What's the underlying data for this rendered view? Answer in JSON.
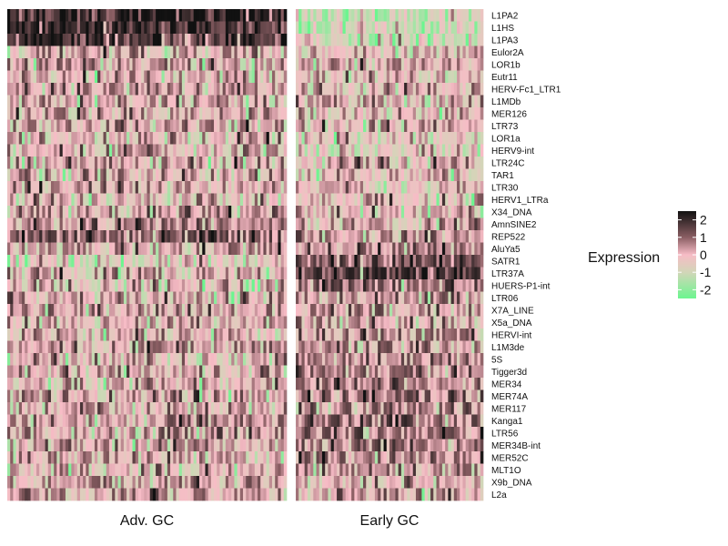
{
  "chart_data": {
    "type": "heatmap",
    "groups": [
      {
        "label": "Adv. GC",
        "columns": 96,
        "seed": 17
      },
      {
        "label": "Early GC",
        "columns": 64,
        "seed": 53
      }
    ],
    "rows": [
      "L1PA2",
      "L1HS",
      "L1PA3",
      "Eulor2A",
      "LOR1b",
      "Eutr11",
      "HERV-Fc1_LTR1",
      "L1MDb",
      "MER126",
      "LTR73",
      "LOR1a",
      "HERV9-int",
      "LTR24C",
      "TAR1",
      "LTR30",
      "HERV1_LTRa",
      "X34_DNA",
      "AmnSINE2",
      "REP522",
      "AluYa5",
      "SATR1",
      "LTR37A",
      "HUERS-P1-int",
      "LTR06",
      "X7A_LINE",
      "X5a_DNA",
      "HERVI-int",
      "L1M3de",
      "5S",
      "Tigger3d",
      "MER34",
      "MER74A",
      "MER117",
      "Kanga1",
      "LTR56",
      "MER34B-int",
      "MER52C",
      "MLT1O",
      "X9b_DNA",
      "L2a"
    ],
    "row_bias": {
      "Adv. GC": [
        2.0,
        1.9,
        1.6,
        0,
        0.3,
        0,
        0.4,
        0.1,
        0.2,
        0.2,
        0.1,
        0,
        0.1,
        0.1,
        0,
        0,
        0.3,
        0.5,
        1.0,
        0.2,
        -0.6,
        -0.1,
        -0.1,
        0.1,
        0.2,
        0.1,
        0,
        0.2,
        0,
        0,
        0.1,
        0,
        0,
        0.2,
        0.1,
        0,
        0,
        0,
        0,
        0.3
      ],
      "Early GC": [
        -1.0,
        -1.0,
        -0.8,
        -0.2,
        0,
        -0.3,
        0,
        0,
        0,
        0,
        -0.3,
        -0.6,
        0,
        -0.2,
        -0.1,
        -0.2,
        0,
        0.2,
        0.3,
        0.6,
        1.2,
        1.6,
        0.9,
        0.3,
        0.2,
        0.2,
        0.3,
        0.3,
        0.5,
        0.5,
        0.6,
        0.7,
        0.7,
        0.8,
        0.7,
        0.6,
        0.5,
        0.2,
        0,
        0.1
      ]
    },
    "legend": {
      "title": "Expression",
      "ticks": [
        "2",
        "1",
        "0",
        "-1",
        "-2"
      ],
      "tick_values": [
        2,
        1,
        0,
        -1,
        -2
      ],
      "range": [
        -2.5,
        2.5
      ]
    },
    "colors": {
      "low": "#6CF58F",
      "mid_low": "#D2D6B8",
      "mid": "#F7BCC6",
      "mid_high": "#8A5E63",
      "high": "#111111"
    },
    "legend_position": "right"
  }
}
